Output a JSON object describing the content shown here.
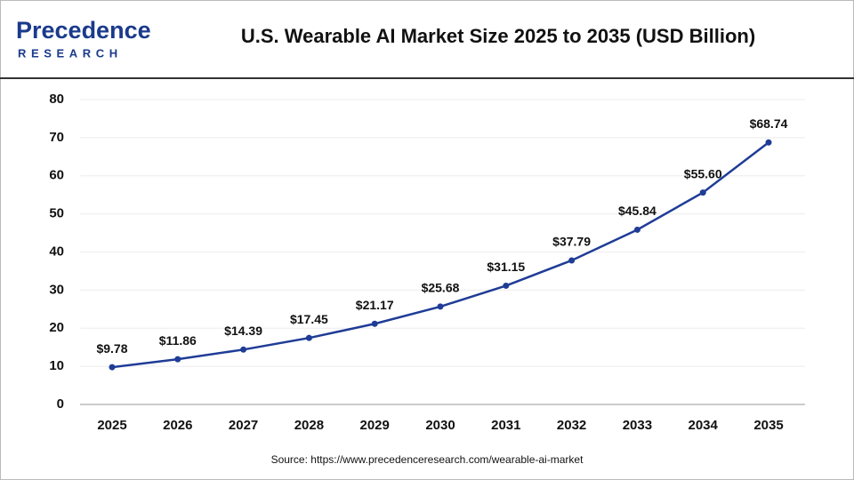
{
  "logo": {
    "name": "Precedence",
    "tagline": "RESEARCH"
  },
  "chart_data": {
    "type": "line",
    "title": "U.S. Wearable AI Market Size 2025 to 2035 (USD Billion)",
    "categories": [
      "2025",
      "2026",
      "2027",
      "2028",
      "2029",
      "2030",
      "2031",
      "2032",
      "2033",
      "2034",
      "2035"
    ],
    "series": [
      {
        "name": "U.S. Wearable AI Market Size",
        "color": "#1f3c96",
        "values": [
          9.78,
          11.86,
          14.39,
          17.45,
          21.17,
          25.68,
          31.15,
          37.79,
          45.84,
          55.6,
          68.74
        ],
        "value_labels": [
          "$9.78",
          "$11.86",
          "$14.39",
          "$17.45",
          "$21.17",
          "$25.68",
          "$31.15",
          "$37.79",
          "$45.84",
          "$55.60",
          "$68.74"
        ]
      }
    ],
    "ylim": [
      0,
      80
    ],
    "yticks": [
      0,
      10,
      20,
      30,
      40,
      50,
      60,
      70,
      80
    ],
    "grid": true,
    "source": "Source: https://www.precedenceresearch.com/wearable-ai-market"
  }
}
